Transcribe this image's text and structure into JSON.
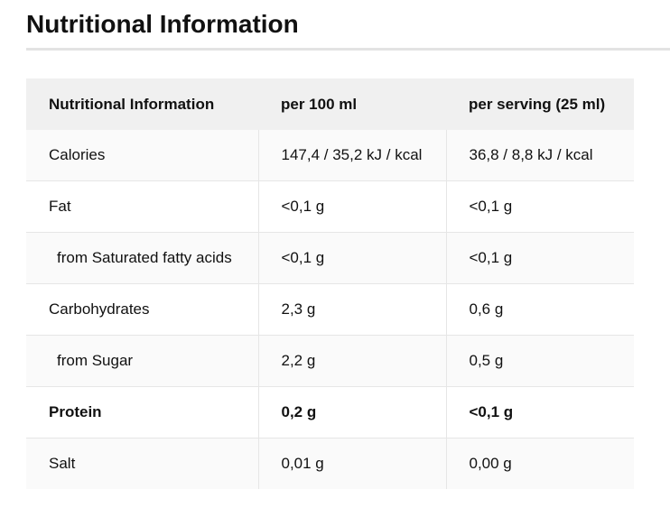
{
  "page": {
    "title": "Nutritional Information"
  },
  "table": {
    "headers": [
      "Nutritional Information",
      "per 100 ml",
      "per serving (25 ml)"
    ],
    "rows": [
      {
        "label": "Calories",
        "per100": "147,4 / 35,2 kJ / kcal",
        "perServing": "36,8 / 8,8 kJ / kcal"
      },
      {
        "label": "Fat",
        "per100": "<0,1 g",
        "perServing": "<0,1 g"
      },
      {
        "label": "from Saturated fatty acids",
        "per100": "<0,1 g",
        "perServing": "<0,1 g"
      },
      {
        "label": "Carbohydrates",
        "per100": "2,3 g",
        "perServing": "0,6 g"
      },
      {
        "label": "from Sugar",
        "per100": "2,2 g",
        "perServing": "0,5 g"
      },
      {
        "label": "Protein",
        "per100": "0,2 g",
        "perServing": "<0,1 g"
      },
      {
        "label": "Salt",
        "per100": "0,01 g",
        "perServing": "0,00 g"
      }
    ]
  },
  "colors": {
    "header_bg": "#f0f0f0",
    "zebra_bg": "#fafafa",
    "border": "#e6e6e6",
    "title_rule": "#e3e3e3",
    "text": "#111111"
  }
}
